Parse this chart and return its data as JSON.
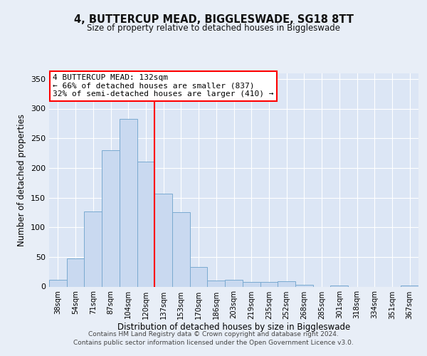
{
  "title": "4, BUTTERCUP MEAD, BIGGLESWADE, SG18 8TT",
  "subtitle": "Size of property relative to detached houses in Biggleswade",
  "xlabel": "Distribution of detached houses by size in Biggleswade",
  "ylabel": "Number of detached properties",
  "bin_labels": [
    "38sqm",
    "54sqm",
    "71sqm",
    "87sqm",
    "104sqm",
    "120sqm",
    "137sqm",
    "153sqm",
    "170sqm",
    "186sqm",
    "203sqm",
    "219sqm",
    "235sqm",
    "252sqm",
    "268sqm",
    "285sqm",
    "301sqm",
    "318sqm",
    "334sqm",
    "351sqm",
    "367sqm"
  ],
  "bar_heights": [
    11,
    47,
    127,
    230,
    283,
    211,
    157,
    125,
    33,
    10,
    11,
    8,
    8,
    9,
    3,
    0,
    2,
    0,
    0,
    0,
    2
  ],
  "bar_color": "#c9d9f0",
  "bar_edge_color": "#7aaad0",
  "vline_x": 5.5,
  "vline_color": "red",
  "annotation_title": "4 BUTTERCUP MEAD: 132sqm",
  "annotation_line1": "← 66% of detached houses are smaller (837)",
  "annotation_line2": "32% of semi-detached houses are larger (410) →",
  "annotation_box_color": "white",
  "annotation_box_edge_color": "red",
  "ylim": [
    0,
    360
  ],
  "yticks": [
    0,
    50,
    100,
    150,
    200,
    250,
    300,
    350
  ],
  "bg_color": "#e8eef7",
  "plot_bg_color": "#dce6f5",
  "footer1": "Contains HM Land Registry data © Crown copyright and database right 2024.",
  "footer2": "Contains public sector information licensed under the Open Government Licence v3.0."
}
